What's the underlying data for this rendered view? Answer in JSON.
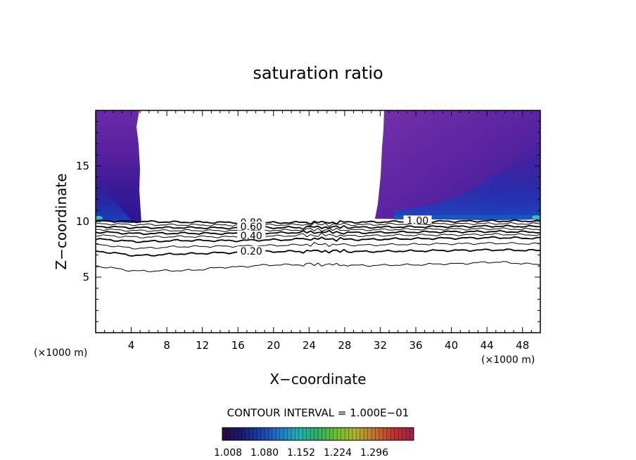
{
  "chart_data": {
    "type": "contour",
    "title": "saturation ratio",
    "xlabel": "X−coordinate",
    "ylabel": "Z−coordinate",
    "x_unit_left": "(×1000 m)",
    "x_unit_right": "(×1000 m)",
    "xlim": [
      0,
      50
    ],
    "ylim": [
      0,
      20
    ],
    "x_ticks": [
      4,
      8,
      12,
      16,
      20,
      24,
      28,
      32,
      36,
      40,
      44,
      48
    ],
    "y_ticks": [
      5,
      10,
      15
    ],
    "contour_interval_text": "CONTOUR INTERVAL = 1.000E−01",
    "contour_labels": [
      {
        "text": "0.80",
        "x": 17.5,
        "z": 9.95
      },
      {
        "text": "0.60",
        "x": 17.5,
        "z": 9.55
      },
      {
        "text": "0.40",
        "x": 17.5,
        "z": 8.75
      },
      {
        "text": "0.20",
        "x": 17.5,
        "z": 7.35
      },
      {
        "text": "1.00",
        "x": 36.2,
        "z": 10.1
      }
    ],
    "contour_levels": [
      {
        "level": 1.0,
        "z": [
          10.05,
          10.0,
          9.95,
          9.92,
          9.9,
          9.92,
          9.95,
          10.0,
          10.02,
          10.05,
          10.05
        ]
      },
      {
        "level": 0.9,
        "z": [
          9.8,
          9.72,
          9.7,
          9.68,
          9.7,
          9.75,
          9.72,
          9.78,
          9.8,
          9.82,
          9.8
        ]
      },
      {
        "level": 0.8,
        "z": [
          9.55,
          9.45,
          9.45,
          9.42,
          9.45,
          9.5,
          9.48,
          9.52,
          9.55,
          9.58,
          9.55
        ]
      },
      {
        "level": 0.7,
        "z": [
          9.3,
          9.18,
          9.2,
          9.18,
          9.22,
          9.28,
          9.25,
          9.3,
          9.32,
          9.35,
          9.3
        ]
      },
      {
        "level": 0.6,
        "z": [
          9.05,
          8.92,
          8.95,
          8.92,
          8.98,
          9.05,
          9.0,
          9.05,
          9.08,
          9.1,
          9.05
        ]
      },
      {
        "level": 0.5,
        "z": [
          8.75,
          8.6,
          8.65,
          8.62,
          8.7,
          8.78,
          8.72,
          8.78,
          8.8,
          8.85,
          8.8
        ]
      },
      {
        "level": 0.4,
        "z": [
          8.4,
          8.2,
          8.3,
          8.28,
          8.35,
          8.45,
          8.38,
          8.45,
          8.5,
          8.55,
          8.5
        ]
      },
      {
        "level": 0.3,
        "z": [
          7.9,
          7.6,
          7.75,
          7.78,
          7.85,
          7.95,
          7.88,
          7.95,
          8.0,
          8.05,
          8.0
        ]
      },
      {
        "level": 0.2,
        "z": [
          7.3,
          6.95,
          7.1,
          7.2,
          7.3,
          7.35,
          7.3,
          7.35,
          7.4,
          7.45,
          7.4
        ]
      },
      {
        "level": 0.1,
        "z": [
          5.95,
          5.55,
          5.6,
          5.9,
          6.1,
          6.15,
          6.05,
          6.1,
          6.2,
          6.35,
          6.15
        ]
      }
    ],
    "colorbar": {
      "tick_labels": [
        "1.008",
        "1.080",
        "1.152",
        "1.224",
        "1.296"
      ],
      "colors": [
        "#2a0a40",
        "#1a1a6e",
        "#1b3fa8",
        "#1f78c8",
        "#20b0b0",
        "#30b060",
        "#70c030",
        "#b0b030",
        "#c07030",
        "#c03030",
        "#a02050"
      ]
    }
  }
}
